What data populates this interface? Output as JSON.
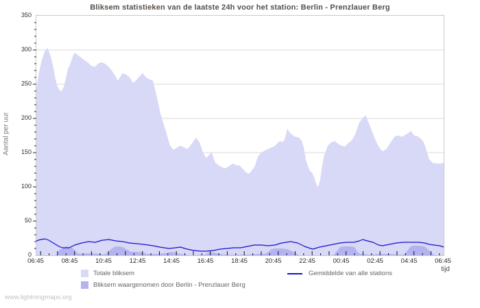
{
  "title": "Bliksem statistieken van de laatste 24h voor het station: Berlin - Prenzlauer Berg",
  "watermark": "www.lightningmaps.org",
  "axes": {
    "y_label": "Aantal per uur",
    "x_label": "tijd",
    "y_ticks": [
      0,
      50,
      100,
      150,
      200,
      250,
      300,
      350
    ],
    "x_ticks": [
      "06:45",
      "08:45",
      "10:45",
      "12:45",
      "14:45",
      "16:45",
      "18:45",
      "20:45",
      "22:45",
      "00:45",
      "02:45",
      "04:45",
      "06:45"
    ]
  },
  "colors": {
    "total_area": "#d8d8f7",
    "station_area": "#b3b3ef",
    "average_line": "#1111cc",
    "grid": "#d8d8d8",
    "plot_border": "#c9c9c9",
    "tick": "#222222"
  },
  "legend": [
    {
      "label": "Totale bliksem",
      "color": "#d8d8f7",
      "type": "area"
    },
    {
      "label": "Bliksem waargenomen door Berlin - Prenzlauer Berg",
      "color": "#b3b3ef",
      "type": "area"
    },
    {
      "label": "Gemiddelde van alle stations",
      "color": "#1111cc",
      "type": "line"
    }
  ],
  "chart_data": {
    "type": "area",
    "title": "Bliksem statistieken van de laatste 24h voor het station: Berlin - Prenzlauer Berg",
    "xlabel": "tijd",
    "ylabel": "Aantal per uur",
    "x_unit": "hours since 06:45",
    "xlim": [
      0,
      24
    ],
    "ylim": [
      0,
      350
    ],
    "grid": true,
    "legend_position": "bottom",
    "x_tick_labels": [
      "06:45",
      "08:45",
      "10:45",
      "12:45",
      "14:45",
      "16:45",
      "18:45",
      "20:45",
      "22:45",
      "00:45",
      "02:45",
      "04:45",
      "06:45"
    ],
    "series": [
      {
        "name": "Totale bliksem",
        "style": "area",
        "color": "#d8d8f7",
        "points": [
          [
            0,
            243
          ],
          [
            0.16,
            268
          ],
          [
            0.32,
            285
          ],
          [
            0.48,
            297
          ],
          [
            0.65,
            303
          ],
          [
            0.77,
            296
          ],
          [
            0.89,
            287
          ],
          [
            1.01,
            273
          ],
          [
            1.13,
            257
          ],
          [
            1.25,
            246
          ],
          [
            1.45,
            239
          ],
          [
            1.62,
            246
          ],
          [
            1.74,
            259
          ],
          [
            1.86,
            272
          ],
          [
            2.02,
            281
          ],
          [
            2.14,
            290
          ],
          [
            2.26,
            296
          ],
          [
            2.42,
            293
          ],
          [
            2.63,
            289
          ],
          [
            2.83,
            285
          ],
          [
            3.03,
            282
          ],
          [
            3.23,
            277
          ],
          [
            3.43,
            275
          ],
          [
            3.64,
            280
          ],
          [
            3.84,
            282
          ],
          [
            4.04,
            280
          ],
          [
            4.24,
            276
          ],
          [
            4.44,
            270
          ],
          [
            4.65,
            262
          ],
          [
            4.81,
            255
          ],
          [
            4.97,
            262
          ],
          [
            5.09,
            266
          ],
          [
            5.29,
            264
          ],
          [
            5.49,
            260
          ],
          [
            5.7,
            252
          ],
          [
            5.86,
            255
          ],
          [
            6.06,
            261
          ],
          [
            6.26,
            266
          ],
          [
            6.46,
            260
          ],
          [
            6.67,
            257
          ],
          [
            6.87,
            255
          ],
          [
            7.07,
            235
          ],
          [
            7.31,
            207
          ],
          [
            7.6,
            184
          ],
          [
            7.88,
            160
          ],
          [
            8.08,
            154
          ],
          [
            8.32,
            158
          ],
          [
            8.48,
            160
          ],
          [
            8.69,
            158
          ],
          [
            8.89,
            155
          ],
          [
            9.13,
            162
          ],
          [
            9.41,
            172
          ],
          [
            9.62,
            165
          ],
          [
            9.82,
            150
          ],
          [
            10.02,
            142
          ],
          [
            10.22,
            148
          ],
          [
            10.34,
            150
          ],
          [
            10.55,
            135
          ],
          [
            10.83,
            130
          ],
          [
            11.11,
            127
          ],
          [
            11.35,
            130
          ],
          [
            11.56,
            134
          ],
          [
            11.76,
            132
          ],
          [
            12,
            131
          ],
          [
            12.2,
            125
          ],
          [
            12.36,
            121
          ],
          [
            12.53,
            119
          ],
          [
            12.73,
            125
          ],
          [
            12.89,
            131
          ],
          [
            13.05,
            144
          ],
          [
            13.25,
            150
          ],
          [
            13.54,
            154
          ],
          [
            13.82,
            157
          ],
          [
            14.06,
            160
          ],
          [
            14.26,
            165
          ],
          [
            14.38,
            167
          ],
          [
            14.51,
            165
          ],
          [
            14.63,
            169
          ],
          [
            14.79,
            185
          ],
          [
            14.91,
            180
          ],
          [
            15.07,
            176
          ],
          [
            15.27,
            173
          ],
          [
            15.47,
            172
          ],
          [
            15.64,
            167
          ],
          [
            15.76,
            157
          ],
          [
            15.88,
            140
          ],
          [
            16,
            130
          ],
          [
            16.12,
            123
          ],
          [
            16.24,
            121
          ],
          [
            16.36,
            115
          ],
          [
            16.48,
            105
          ],
          [
            16.61,
            99
          ],
          [
            16.73,
            112
          ],
          [
            16.85,
            132
          ],
          [
            16.97,
            147
          ],
          [
            17.17,
            160
          ],
          [
            17.37,
            165
          ],
          [
            17.58,
            167
          ],
          [
            17.78,
            163
          ],
          [
            17.98,
            160
          ],
          [
            18.18,
            159
          ],
          [
            18.38,
            164
          ],
          [
            18.59,
            168
          ],
          [
            18.79,
            177
          ],
          [
            19.03,
            194
          ],
          [
            19.23,
            200
          ],
          [
            19.39,
            205
          ],
          [
            19.56,
            195
          ],
          [
            19.72,
            185
          ],
          [
            19.92,
            172
          ],
          [
            20.12,
            161
          ],
          [
            20.32,
            154
          ],
          [
            20.44,
            152
          ],
          [
            20.65,
            156
          ],
          [
            20.93,
            167
          ],
          [
            21.13,
            174
          ],
          [
            21.33,
            175
          ],
          [
            21.54,
            173
          ],
          [
            21.74,
            176
          ],
          [
            21.94,
            179
          ],
          [
            22.06,
            182
          ],
          [
            22.26,
            175
          ],
          [
            22.46,
            174
          ],
          [
            22.67,
            170
          ],
          [
            22.83,
            165
          ],
          [
            23.03,
            150
          ],
          [
            23.15,
            140
          ],
          [
            23.35,
            135
          ],
          [
            23.6,
            134
          ],
          [
            23.8,
            134
          ],
          [
            24,
            135
          ]
        ]
      },
      {
        "name": "Bliksem waargenomen door Berlin - Prenzlauer Berg",
        "style": "area",
        "color": "#b3b3ef",
        "points": [
          [
            0,
            0
          ],
          [
            1.13,
            0
          ],
          [
            1.21,
            2
          ],
          [
            1.37,
            8
          ],
          [
            1.74,
            13
          ],
          [
            2.02,
            12
          ],
          [
            2.26,
            8
          ],
          [
            2.42,
            3
          ],
          [
            2.67,
            2
          ],
          [
            2.95,
            3
          ],
          [
            3.35,
            3
          ],
          [
            3.76,
            2
          ],
          [
            3.96,
            1
          ],
          [
            4.16,
            3
          ],
          [
            4.36,
            8
          ],
          [
            4.57,
            12
          ],
          [
            4.77,
            13
          ],
          [
            5.09,
            12
          ],
          [
            5.37,
            8
          ],
          [
            5.58,
            5
          ],
          [
            5.9,
            5
          ],
          [
            6.3,
            4
          ],
          [
            6.51,
            2
          ],
          [
            6.99,
            2
          ],
          [
            7.6,
            3
          ],
          [
            7.92,
            5
          ],
          [
            8.2,
            4
          ],
          [
            8.48,
            2
          ],
          [
            8.81,
            1
          ],
          [
            9.13,
            0
          ],
          [
            9.94,
            1
          ],
          [
            10.14,
            4
          ],
          [
            10.42,
            4
          ],
          [
            10.75,
            2
          ],
          [
            11.23,
            1
          ],
          [
            12.44,
            1
          ],
          [
            13.05,
            2
          ],
          [
            13.45,
            2
          ],
          [
            13.66,
            5
          ],
          [
            13.86,
            9
          ],
          [
            14.06,
            10
          ],
          [
            14.46,
            10
          ],
          [
            14.79,
            9
          ],
          [
            15.07,
            6
          ],
          [
            15.35,
            2
          ],
          [
            15.52,
            0
          ],
          [
            17.5,
            0
          ],
          [
            17.7,
            6
          ],
          [
            17.9,
            12
          ],
          [
            18.1,
            13
          ],
          [
            18.5,
            13
          ],
          [
            18.75,
            12
          ],
          [
            18.91,
            5
          ],
          [
            19.07,
            2
          ],
          [
            19.31,
            2
          ],
          [
            19.52,
            1
          ],
          [
            19.92,
            1
          ],
          [
            20.12,
            2
          ],
          [
            20.93,
            2
          ],
          [
            21.25,
            1
          ],
          [
            21.66,
            1
          ],
          [
            21.82,
            5
          ],
          [
            22.02,
            12
          ],
          [
            22.14,
            14
          ],
          [
            22.55,
            14
          ],
          [
            22.87,
            13
          ],
          [
            23.11,
            8
          ],
          [
            23.35,
            2
          ],
          [
            23.52,
            0
          ],
          [
            24,
            0
          ]
        ]
      },
      {
        "name": "Gemiddelde van alle stations",
        "style": "line",
        "color": "#1111cc",
        "points": [
          [
            0,
            21
          ],
          [
            0.24,
            23
          ],
          [
            0.53,
            24
          ],
          [
            0.73,
            22
          ],
          [
            0.93,
            19
          ],
          [
            1.13,
            16
          ],
          [
            1.33,
            13
          ],
          [
            1.54,
            11
          ],
          [
            1.94,
            11
          ],
          [
            2.26,
            15
          ],
          [
            2.67,
            18
          ],
          [
            3.07,
            20
          ],
          [
            3.47,
            19
          ],
          [
            3.88,
            22
          ],
          [
            4.28,
            23
          ],
          [
            4.69,
            21
          ],
          [
            5.09,
            20
          ],
          [
            5.49,
            18
          ],
          [
            5.9,
            17
          ],
          [
            6.3,
            16
          ],
          [
            6.87,
            14
          ],
          [
            7.27,
            12
          ],
          [
            7.8,
            10
          ],
          [
            8.2,
            11
          ],
          [
            8.48,
            12
          ],
          [
            8.89,
            9
          ],
          [
            9.29,
            7
          ],
          [
            9.7,
            6
          ],
          [
            10.02,
            6
          ],
          [
            10.42,
            7
          ],
          [
            10.83,
            9
          ],
          [
            11.23,
            10
          ],
          [
            11.64,
            11
          ],
          [
            12.04,
            11
          ],
          [
            12.44,
            13
          ],
          [
            12.85,
            15
          ],
          [
            13.25,
            15
          ],
          [
            13.66,
            14
          ],
          [
            14.06,
            15
          ],
          [
            14.46,
            18
          ],
          [
            14.99,
            20
          ],
          [
            15.39,
            18
          ],
          [
            15.8,
            13
          ],
          [
            16.28,
            9
          ],
          [
            16.69,
            12
          ],
          [
            17.09,
            14
          ],
          [
            17.5,
            16
          ],
          [
            17.9,
            18
          ],
          [
            18.3,
            19
          ],
          [
            18.71,
            19
          ],
          [
            19.03,
            21
          ],
          [
            19.23,
            23
          ],
          [
            19.52,
            21
          ],
          [
            19.84,
            19
          ],
          [
            20.16,
            15
          ],
          [
            20.4,
            14
          ],
          [
            20.81,
            16
          ],
          [
            21.21,
            18
          ],
          [
            21.62,
            19
          ],
          [
            22.14,
            19
          ],
          [
            22.55,
            19
          ],
          [
            22.87,
            18
          ],
          [
            23.15,
            16
          ],
          [
            23.43,
            15
          ],
          [
            23.76,
            14
          ],
          [
            24,
            12
          ]
        ]
      }
    ]
  }
}
